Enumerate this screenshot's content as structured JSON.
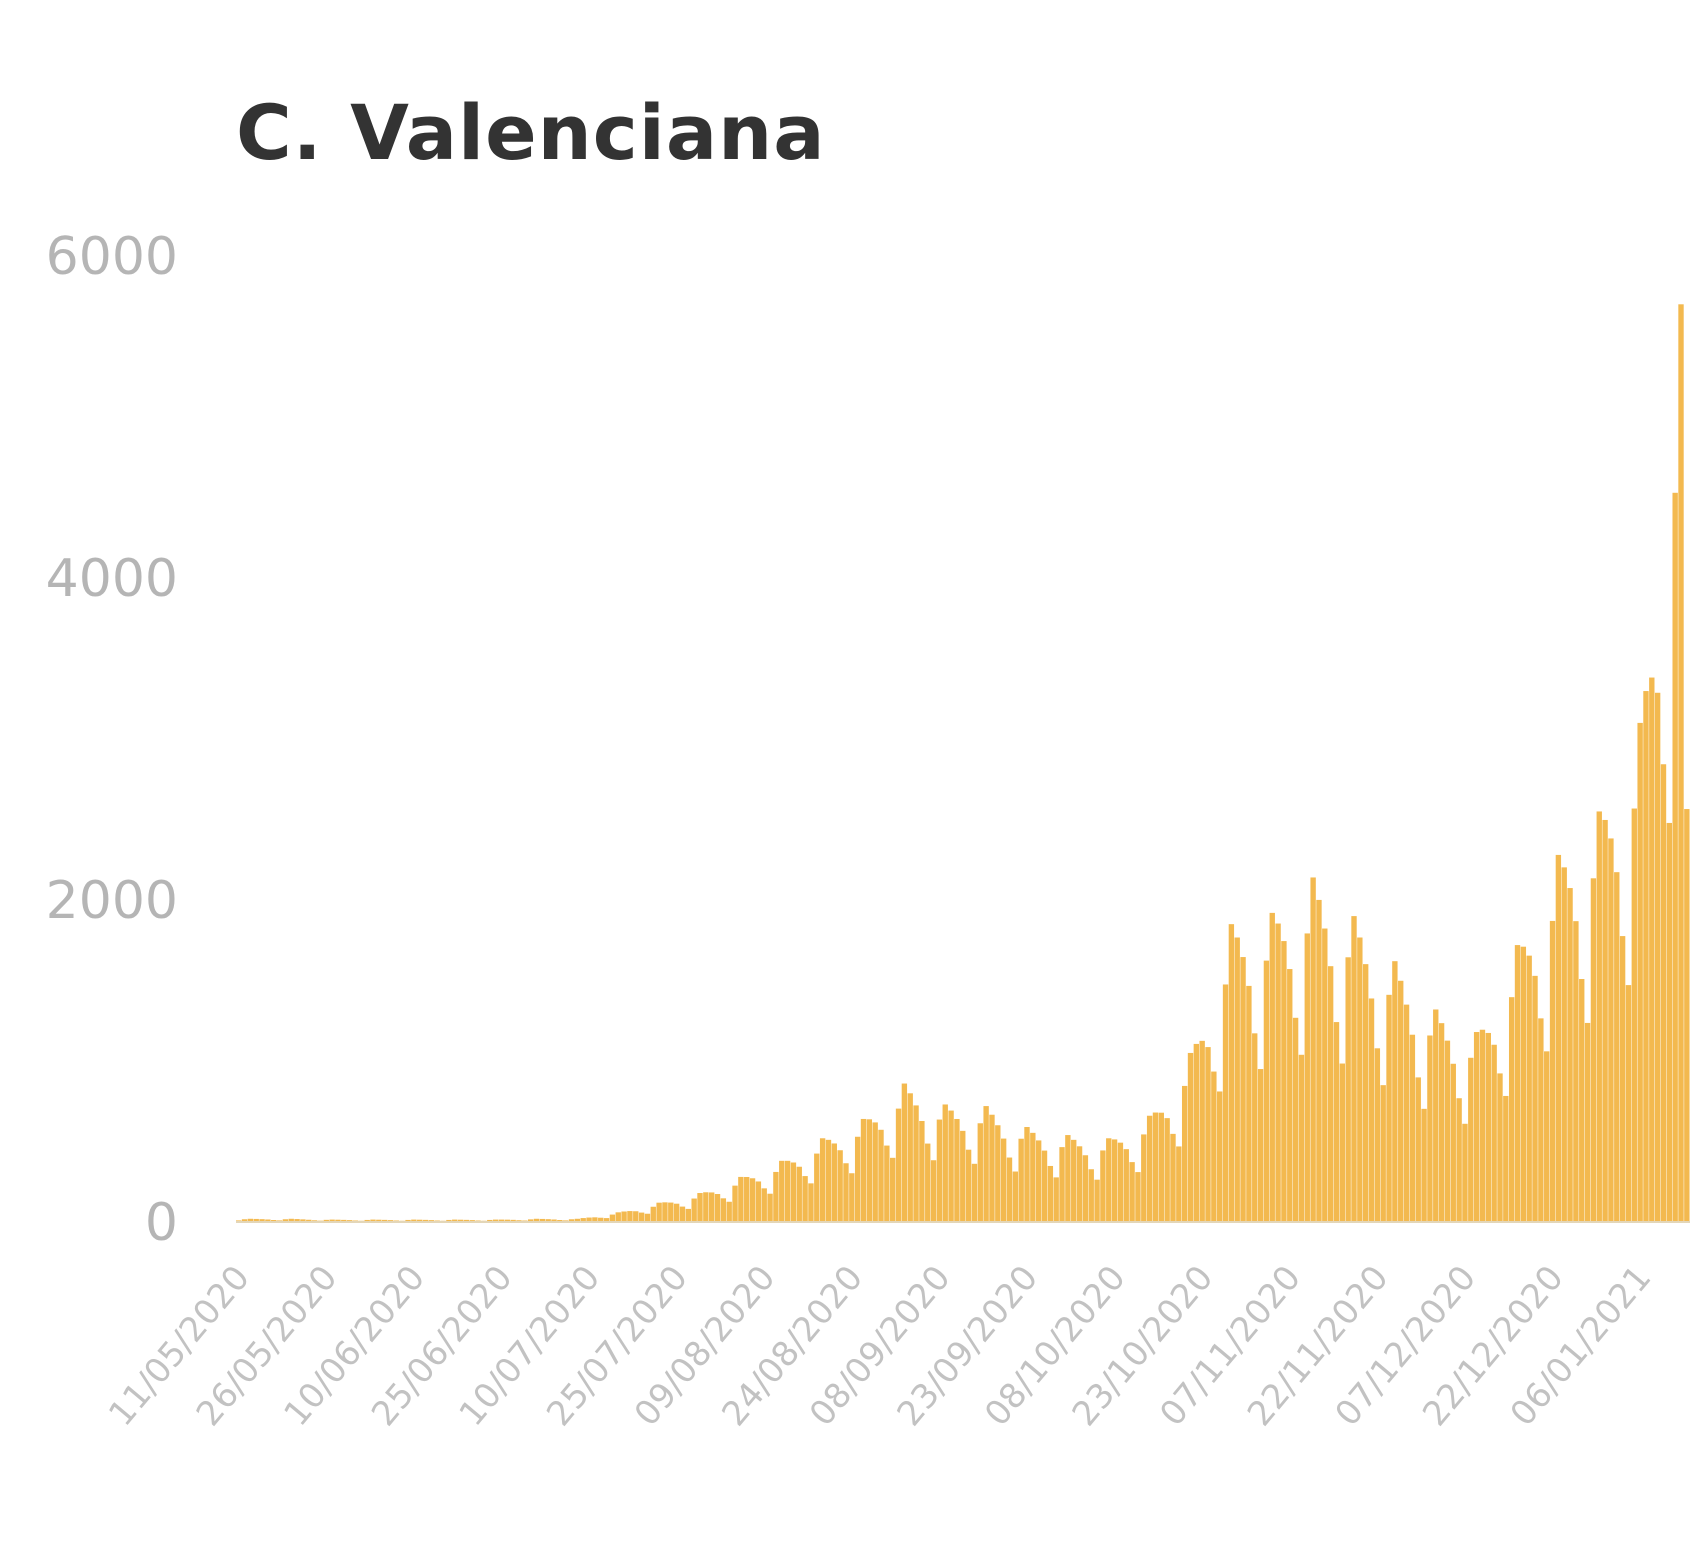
{
  "chart_data": {
    "type": "bar",
    "title": "C. Valenciana",
    "xlabel": "",
    "ylabel": "",
    "ylim": [
      0,
      6000
    ],
    "y_ticks": [
      "0",
      "2000",
      "4000",
      "6000"
    ],
    "x_tick_labels": [
      "11/05/2020",
      "26/05/2020",
      "10/06/2020",
      "25/06/2020",
      "10/07/2020",
      "25/07/2020",
      "09/08/2020",
      "24/08/2020",
      "08/09/2020",
      "23/09/2020",
      "08/10/2020",
      "23/10/2020",
      "07/11/2020",
      "22/11/2020",
      "07/12/2020",
      "22/12/2020",
      "06/01/2021"
    ],
    "x_start": "11/05/2020",
    "x_end": "14/01/2021",
    "bar_color": "#f2b13c",
    "grid": false,
    "weekly_peaks": [
      {
        "date": "13/05/2020",
        "value": 20
      },
      {
        "date": "20/05/2020",
        "value": 20
      },
      {
        "date": "27/05/2020",
        "value": 15
      },
      {
        "date": "03/06/2020",
        "value": 15
      },
      {
        "date": "10/06/2020",
        "value": 15
      },
      {
        "date": "17/06/2020",
        "value": 15
      },
      {
        "date": "24/06/2020",
        "value": 15
      },
      {
        "date": "01/07/2020",
        "value": 20
      },
      {
        "date": "08/07/2020",
        "value": 20
      },
      {
        "date": "15/07/2020",
        "value": 60
      },
      {
        "date": "22/07/2020",
        "value": 120
      },
      {
        "date": "29/07/2020",
        "value": 180
      },
      {
        "date": "05/08/2020",
        "value": 280
      },
      {
        "date": "12/08/2020",
        "value": 380
      },
      {
        "date": "19/08/2020",
        "value": 520
      },
      {
        "date": "26/08/2020",
        "value": 640
      },
      {
        "date": "02/09/2020",
        "value": 860
      },
      {
        "date": "09/09/2020",
        "value": 730
      },
      {
        "date": "16/09/2020",
        "value": 720
      },
      {
        "date": "23/09/2020",
        "value": 590
      },
      {
        "date": "30/09/2020",
        "value": 540
      },
      {
        "date": "07/10/2020",
        "value": 520
      },
      {
        "date": "14/10/2020",
        "value": 660
      },
      {
        "date": "21/10/2020",
        "value": 1050
      },
      {
        "date": "28/10/2020",
        "value": 1850
      },
      {
        "date": "04/11/2020",
        "value": 1920
      },
      {
        "date": "11/11/2020",
        "value": 2140
      },
      {
        "date": "18/11/2020",
        "value": 1900
      },
      {
        "date": "25/11/2020",
        "value": 1620
      },
      {
        "date": "02/12/2020",
        "value": 1320
      },
      {
        "date": "09/12/2020",
        "value": 1180
      },
      {
        "date": "16/12/2020",
        "value": 1720
      },
      {
        "date": "23/12/2020",
        "value": 2280
      },
      {
        "date": "30/12/2020",
        "value": 2550
      },
      {
        "date": "06/01/2021",
        "value": 3100
      },
      {
        "date": "13/01/2021",
        "value": 5700
      }
    ]
  }
}
